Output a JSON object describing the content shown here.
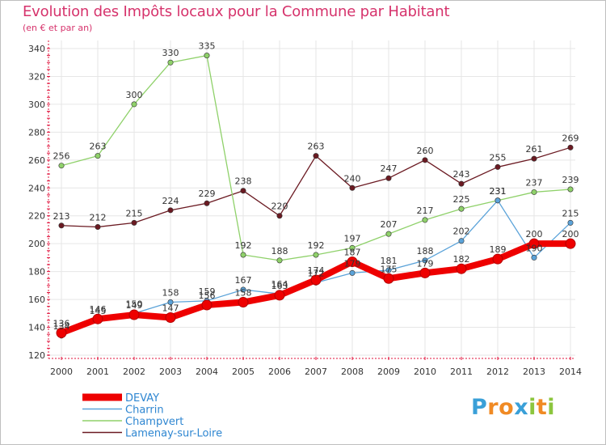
{
  "chart_data": {
    "type": "line",
    "title": "Evolution des Impôts locaux pour la Commune par Habitant",
    "subtitle": "(en € et par an)",
    "xlabel": "",
    "ylabel": "",
    "x": [
      "2000",
      "2001",
      "2002",
      "2003",
      "2004",
      "2005",
      "2006",
      "2007",
      "2008",
      "2009",
      "2010",
      "2011",
      "2012",
      "2013",
      "2014"
    ],
    "ylim": [
      120,
      340
    ],
    "yticks": [
      120,
      140,
      160,
      180,
      200,
      220,
      240,
      260,
      280,
      300,
      320,
      340
    ],
    "grid": true,
    "legend_position": "bottom-left",
    "series": [
      {
        "name": "Lamenay-sur-Loire",
        "color": "#6b1a22",
        "values": [
          213,
          212,
          215,
          224,
          229,
          238,
          220,
          263,
          240,
          247,
          260,
          243,
          255,
          261,
          269
        ]
      },
      {
        "name": "Champvert",
        "color": "#8fd16a",
        "values": [
          256,
          263,
          300,
          330,
          335,
          192,
          188,
          192,
          197,
          207,
          217,
          225,
          231,
          237,
          239
        ]
      },
      {
        "name": "Charrin",
        "color": "#5ba3d9",
        "values": [
          134,
          145,
          150,
          158,
          159,
          167,
          164,
          172,
          179,
          181,
          188,
          202,
          231,
          190,
          215
        ]
      },
      {
        "name": "DEVAY",
        "color": "#ee0000",
        "values": [
          136,
          146,
          149,
          147,
          156,
          158,
          163,
          174,
          187,
          175,
          179,
          182,
          189,
          200,
          200
        ]
      }
    ],
    "data_labels": {
      "Lamenay-sur-Loire": [
        "213",
        "212",
        "215",
        "224",
        "229",
        "238",
        "220",
        "263",
        "240",
        "247",
        "260",
        "243",
        "255",
        "261",
        "269"
      ],
      "Champvert": [
        "256",
        "263",
        "300",
        "330",
        "335",
        "192",
        "188",
        "192",
        "197",
        "207",
        "217",
        "225",
        "231",
        "237",
        "239"
      ],
      "Charrin": [
        "134",
        "145",
        "150",
        "158",
        "159",
        "167",
        "164",
        "172",
        "179",
        "181",
        "188",
        "202",
        "231",
        "190",
        "215"
      ],
      "DEVAY": [
        "136",
        "146",
        "149",
        "147",
        "156",
        "158",
        "163",
        "174",
        "187",
        "175",
        "179",
        "182",
        "189",
        "200",
        "200"
      ]
    },
    "legend_order": [
      "DEVAY",
      "Charrin",
      "Champvert",
      "Lamenay-sur-Loire"
    ]
  },
  "branding": {
    "logo_text": "Proxiti",
    "logo_letters": [
      "P",
      "r",
      "o",
      "x",
      "i",
      "t",
      "i"
    ],
    "logo_colors": [
      "#3aa0d8",
      "#f08a24",
      "#f08a24",
      "#3aa0d8",
      "#8cc63e",
      "#f08a24",
      "#8cc63e"
    ]
  },
  "colors": {
    "title": "#d6336c",
    "legend_text": "#2e86d1",
    "axis": "#e0103a",
    "grid": "#e6e6e6"
  }
}
